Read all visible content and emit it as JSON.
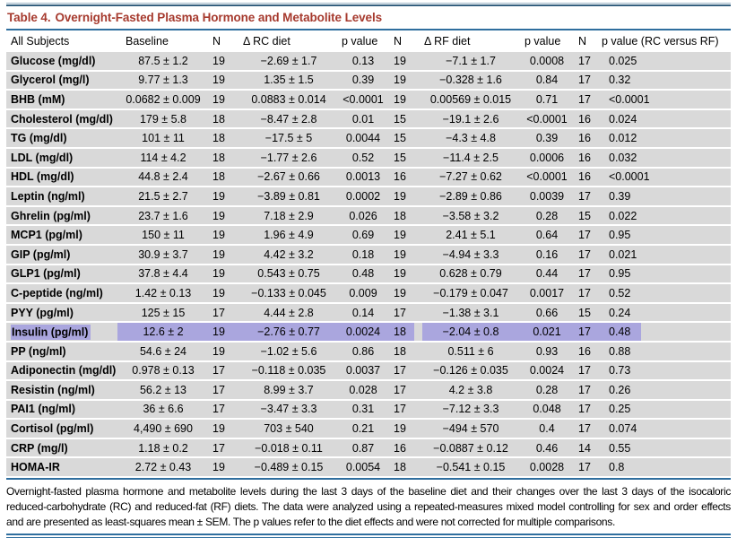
{
  "title": {
    "label": "Table 4.",
    "text": "Overnight-Fasted Plasma Hormone and Metabolite Levels"
  },
  "table": {
    "columns": [
      "All Subjects",
      "Baseline",
      "N",
      "Δ RC diet",
      "p value",
      "N",
      "Δ RF diet",
      "p value",
      "N",
      "p value (RC versus RF)"
    ],
    "rows": [
      {
        "label": "Glucose (mg/dl)",
        "values": [
          "87.5 ± 1.2",
          "19",
          "−2.69 ± 1.7",
          "0.13",
          "19",
          "−7.1 ± 1.7",
          "0.0008",
          "17",
          "0.025"
        ],
        "highlighted": false
      },
      {
        "label": "Glycerol (mg/l)",
        "values": [
          "9.77 ± 1.3",
          "19",
          "1.35 ± 1.5",
          "0.39",
          "19",
          "−0.328 ± 1.6",
          "0.84",
          "17",
          "0.32"
        ],
        "highlighted": false
      },
      {
        "label": "BHB (mM)",
        "values": [
          "0.0682 ± 0.009",
          "19",
          "0.0883 ± 0.014",
          "<0.0001",
          "19",
          "0.00569 ± 0.015",
          "0.71",
          "17",
          "<0.0001"
        ],
        "highlighted": false
      },
      {
        "label": "Cholesterol (mg/dl)",
        "values": [
          "179 ± 5.8",
          "18",
          "−8.47 ± 2.8",
          "0.01",
          "15",
          "−19.1 ± 2.6",
          "<0.0001",
          "16",
          "0.024"
        ],
        "highlighted": false
      },
      {
        "label": "TG (mg/dl)",
        "values": [
          "101 ± 11",
          "18",
          "−17.5 ± 5",
          "0.0044",
          "15",
          "−4.3 ± 4.8",
          "0.39",
          "16",
          "0.012"
        ],
        "highlighted": false
      },
      {
        "label": "LDL (mg/dl)",
        "values": [
          "114 ± 4.2",
          "18",
          "−1.77 ± 2.6",
          "0.52",
          "15",
          "−11.4 ± 2.5",
          "0.0006",
          "16",
          "0.032"
        ],
        "highlighted": false
      },
      {
        "label": "HDL (mg/dl)",
        "values": [
          "44.8 ± 2.4",
          "18",
          "−2.67 ± 0.66",
          "0.0013",
          "16",
          "−7.27 ± 0.62",
          "<0.0001",
          "16",
          "<0.0001"
        ],
        "highlighted": false
      },
      {
        "label": "Leptin (ng/ml)",
        "values": [
          "21.5 ± 2.7",
          "19",
          "−3.89 ± 0.81",
          "0.0002",
          "19",
          "−2.89 ± 0.86",
          "0.0039",
          "17",
          "0.39"
        ],
        "highlighted": false
      },
      {
        "label": "Ghrelin (pg/ml)",
        "values": [
          "23.7 ± 1.6",
          "19",
          "7.18 ± 2.9",
          "0.026",
          "18",
          "−3.58 ± 3.2",
          "0.28",
          "15",
          "0.022"
        ],
        "highlighted": false
      },
      {
        "label": "MCP1 (pg/ml)",
        "values": [
          "150 ± 11",
          "19",
          "1.96 ± 4.9",
          "0.69",
          "19",
          "2.41 ± 5.1",
          "0.64",
          "17",
          "0.95"
        ],
        "highlighted": false
      },
      {
        "label": "GIP (pg/ml)",
        "values": [
          "30.9 ± 3.7",
          "19",
          "4.42 ± 3.2",
          "0.18",
          "19",
          "−4.94 ± 3.3",
          "0.16",
          "17",
          "0.021"
        ],
        "highlighted": false
      },
      {
        "label": "GLP1 (pg/ml)",
        "values": [
          "37.8 ± 4.4",
          "19",
          "0.543 ± 0.75",
          "0.48",
          "19",
          "0.628 ± 0.79",
          "0.44",
          "17",
          "0.95"
        ],
        "highlighted": false
      },
      {
        "label": "C-peptide (ng/ml)",
        "values": [
          "1.42 ± 0.13",
          "19",
          "−0.133 ± 0.045",
          "0.009",
          "19",
          "−0.179 ± 0.047",
          "0.0017",
          "17",
          "0.52"
        ],
        "highlighted": false
      },
      {
        "label": "PYY (pg/ml)",
        "values": [
          "125 ± 15",
          "17",
          "4.44 ± 2.8",
          "0.14",
          "17",
          "−1.38 ± 3.1",
          "0.66",
          "15",
          "0.24"
        ],
        "highlighted": false
      },
      {
        "label": "Insulin (pg/ml)",
        "values": [
          "12.6 ± 2",
          "19",
          "−2.76 ± 0.77",
          "0.0024",
          "18",
          "−2.04 ± 0.8",
          "0.021",
          "17",
          "0.48"
        ],
        "highlighted": true
      },
      {
        "label": "PP (ng/ml)",
        "values": [
          "54.6 ± 24",
          "19",
          "−1.02 ± 5.6",
          "0.86",
          "18",
          "0.511 ± 6",
          "0.93",
          "16",
          "0.88"
        ],
        "highlighted": false
      },
      {
        "label": "Adiponectin (mg/dl)",
        "values": [
          "0.978 ± 0.13",
          "17",
          "−0.118 ± 0.035",
          "0.0037",
          "17",
          "−0.126 ± 0.035",
          "0.0024",
          "17",
          "0.73"
        ],
        "highlighted": false
      },
      {
        "label": "Resistin (ng/ml)",
        "values": [
          "56.2 ± 13",
          "17",
          "8.99 ± 3.7",
          "0.028",
          "17",
          "4.2 ± 3.8",
          "0.28",
          "17",
          "0.26"
        ],
        "highlighted": false
      },
      {
        "label": "PAI1 (ng/ml)",
        "values": [
          "36 ± 6.6",
          "17",
          "−3.47 ± 3.3",
          "0.31",
          "17",
          "−7.12 ± 3.3",
          "0.048",
          "17",
          "0.25"
        ],
        "highlighted": false
      },
      {
        "label": "Cortisol (pg/ml)",
        "values": [
          "4,490 ± 690",
          "19",
          "703 ± 540",
          "0.21",
          "19",
          "−494 ± 570",
          "0.4",
          "17",
          "0.074"
        ],
        "highlighted": false
      },
      {
        "label": "CRP (mg/l)",
        "values": [
          "1.18 ± 0.2",
          "17",
          "−0.018 ± 0.11",
          "0.87",
          "16",
          "−0.0887 ± 0.12",
          "0.46",
          "14",
          "0.55"
        ],
        "highlighted": false
      },
      {
        "label": "HOMA-IR",
        "values": [
          "2.72 ± 0.43",
          "19",
          "−0.489 ± 0.15",
          "0.0054",
          "18",
          "−0.541 ± 0.15",
          "0.0028",
          "17",
          "0.8"
        ],
        "highlighted": false
      }
    ]
  },
  "footnote": "Overnight-fasted plasma hormone and metabolite levels during the last 3 days of the baseline diet and their changes over the last 3 days of the isocaloric reduced-carbohydrate (RC) and reduced-fat (RF) diets. The data were analyzed using a repeated-measures mixed model controlling for sex and order effects and are presented as least-squares mean ± SEM. The p values refer to the diet effects and were not corrected for multiple comparisons.",
  "colors": {
    "title_red": "#a63a2e",
    "rule_blue": "#2f6e9e",
    "rule_dark_navy": "#1c3c5e",
    "row_gray": "#d9d9d9",
    "highlight_purple": "#aaa6de"
  }
}
